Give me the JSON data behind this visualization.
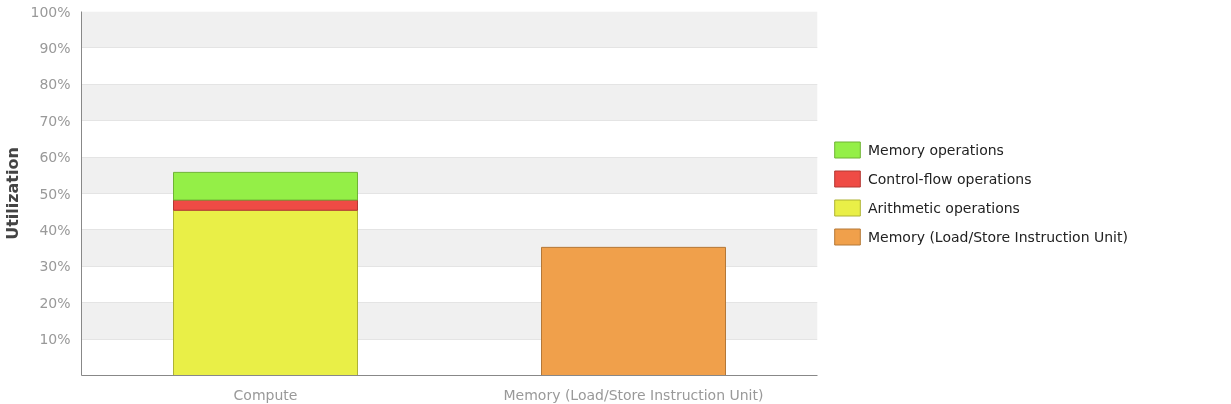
{
  "chart_data": {
    "type": "bar",
    "stacked": true,
    "ylabel": "Utilization",
    "categories": [
      "Compute",
      "Memory (Load/Store Instruction Unit)"
    ],
    "series": [
      {
        "name": "Memory (Load/Store Instruction Unit)",
        "color": "#f0a04b",
        "values": [
          null,
          35.2
        ]
      },
      {
        "name": "Arithmetic operations",
        "color": "#e9ef47",
        "values": [
          45.4,
          null
        ]
      },
      {
        "name": "Control-flow operations",
        "color": "#ef4b45",
        "values": [
          2.8,
          null
        ]
      },
      {
        "name": "Memory operations",
        "color": "#94ef47",
        "values": [
          7.6,
          null
        ]
      }
    ],
    "ylim": [
      0,
      100
    ],
    "yticks": [
      {
        "value": 10,
        "label": "10%"
      },
      {
        "value": 20,
        "label": "20%"
      },
      {
        "value": 30,
        "label": "30%"
      },
      {
        "value": 40,
        "label": "40%"
      },
      {
        "value": 50,
        "label": "50%"
      },
      {
        "value": 60,
        "label": "60%"
      },
      {
        "value": 70,
        "label": "70%"
      },
      {
        "value": 80,
        "label": "80%"
      },
      {
        "value": 90,
        "label": "90%"
      },
      {
        "value": 100,
        "label": "100%"
      }
    ],
    "grid": "y",
    "legend": "right"
  }
}
